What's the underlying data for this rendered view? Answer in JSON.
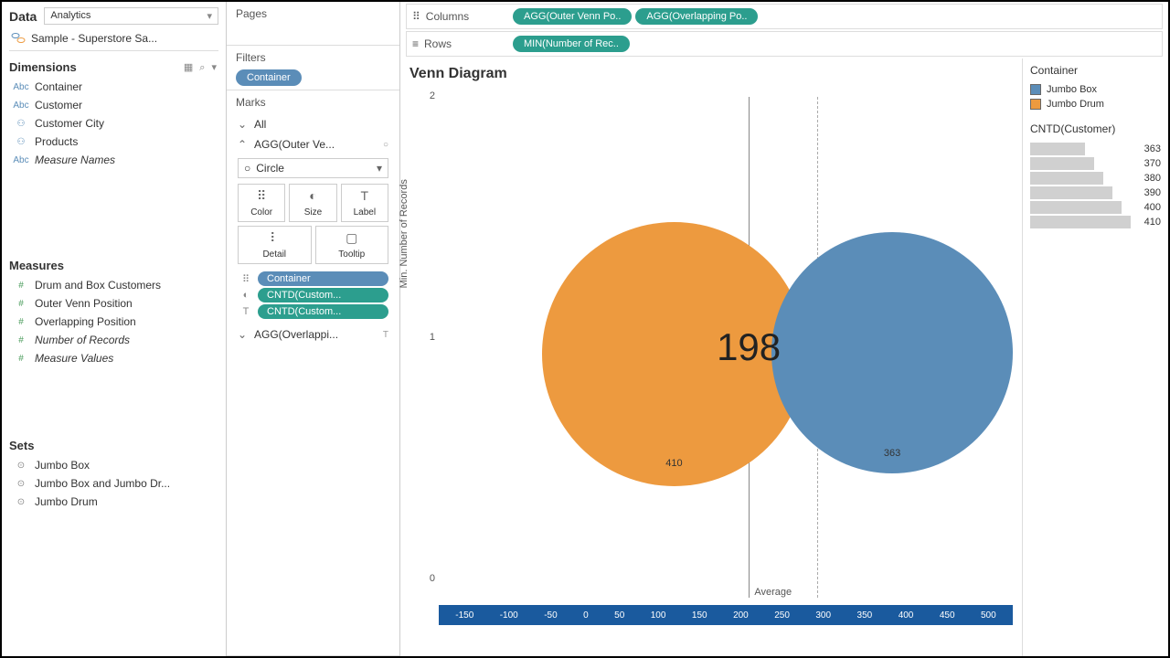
{
  "data_panel": {
    "tab": "Data",
    "dropdown": "Analytics",
    "datasource": "Sample - Superstore Sa..."
  },
  "dimensions": {
    "title": "Dimensions",
    "items": [
      {
        "icon": "Abc",
        "label": "Container"
      },
      {
        "icon": "Abc",
        "label": "Customer"
      },
      {
        "icon": "⚇",
        "label": "Customer City"
      },
      {
        "icon": "⚇",
        "label": "Products"
      },
      {
        "icon": "Abc",
        "label": "Measure Names",
        "italic": true
      }
    ]
  },
  "measures": {
    "title": "Measures",
    "items": [
      {
        "label": "Drum and Box Customers"
      },
      {
        "label": "Outer Venn Position"
      },
      {
        "label": "Overlapping Position"
      },
      {
        "label": "Number of Records",
        "italic": true
      },
      {
        "label": "Measure Values",
        "italic": true
      }
    ]
  },
  "sets": {
    "title": "Sets",
    "items": [
      {
        "label": "Jumbo Box"
      },
      {
        "label": "Jumbo Box and Jumbo Dr..."
      },
      {
        "label": "Jumbo Drum"
      }
    ]
  },
  "pages": {
    "title": "Pages"
  },
  "filters": {
    "title": "Filters",
    "pill": "Container"
  },
  "marks": {
    "title": "Marks",
    "rows": [
      {
        "label": "All",
        "chev": "⌄"
      },
      {
        "label": "AGG(Outer Ve...",
        "chev": "⌃",
        "indicator": "○"
      },
      {
        "label": "AGG(Overlappi...",
        "chev": "⌄",
        "indicator": "T"
      }
    ],
    "type_label": "Circle",
    "type_icon": "○",
    "buttons": [
      {
        "icon": "⠿",
        "label": "Color"
      },
      {
        "icon": "◐",
        "label": "Size"
      },
      {
        "icon": "T",
        "label": "Label"
      },
      {
        "icon": "⠇",
        "label": "Detail"
      },
      {
        "icon": "▢",
        "label": "Tooltip"
      }
    ],
    "pills": [
      {
        "icon": "⠿",
        "label": "Container",
        "blue": true
      },
      {
        "icon": "◐",
        "label": "CNTD(Custom..."
      },
      {
        "icon": "T",
        "label": "CNTD(Custom..."
      }
    ]
  },
  "shelves": {
    "columns": {
      "label": "Columns",
      "pills": [
        "AGG(Outer Venn Po..",
        "AGG(Overlapping Po.."
      ]
    },
    "rows": {
      "label": "Rows",
      "pills": [
        "MIN(Number of Rec.."
      ]
    }
  },
  "viz": {
    "title": "Venn Diagram",
    "y_label": "Min. Number of Records",
    "y_ticks": [
      {
        "val": "2",
        "pct": 2
      },
      {
        "val": "1",
        "pct": 50
      },
      {
        "val": "0",
        "pct": 98
      }
    ],
    "center_number": "198",
    "circles": [
      {
        "color": "#ed9a3f",
        "left_pct": 18,
        "top_pct": 25,
        "size_pct": 46,
        "label": "410"
      },
      {
        "color": "#5b8db8",
        "left_pct": 58,
        "top_pct": 27,
        "size_pct": 42,
        "label": "363"
      }
    ],
    "vline_solid_pct": 54,
    "vline_dashed_pct": 66,
    "avg_label": "Average",
    "x_ticks": [
      "-150",
      "-100",
      "-50",
      "0",
      "50",
      "100",
      "150",
      "200",
      "250",
      "300",
      "350",
      "400",
      "450",
      "500"
    ]
  },
  "legend": {
    "color_title": "Container",
    "items": [
      {
        "swatch": "#5b8db8",
        "label": "Jumbo Box"
      },
      {
        "swatch": "#ed9a3f",
        "label": "Jumbo Drum"
      }
    ],
    "size_title": "CNTD(Customer)",
    "size_vals": [
      "363",
      "370",
      "380",
      "390",
      "400",
      "410"
    ]
  }
}
